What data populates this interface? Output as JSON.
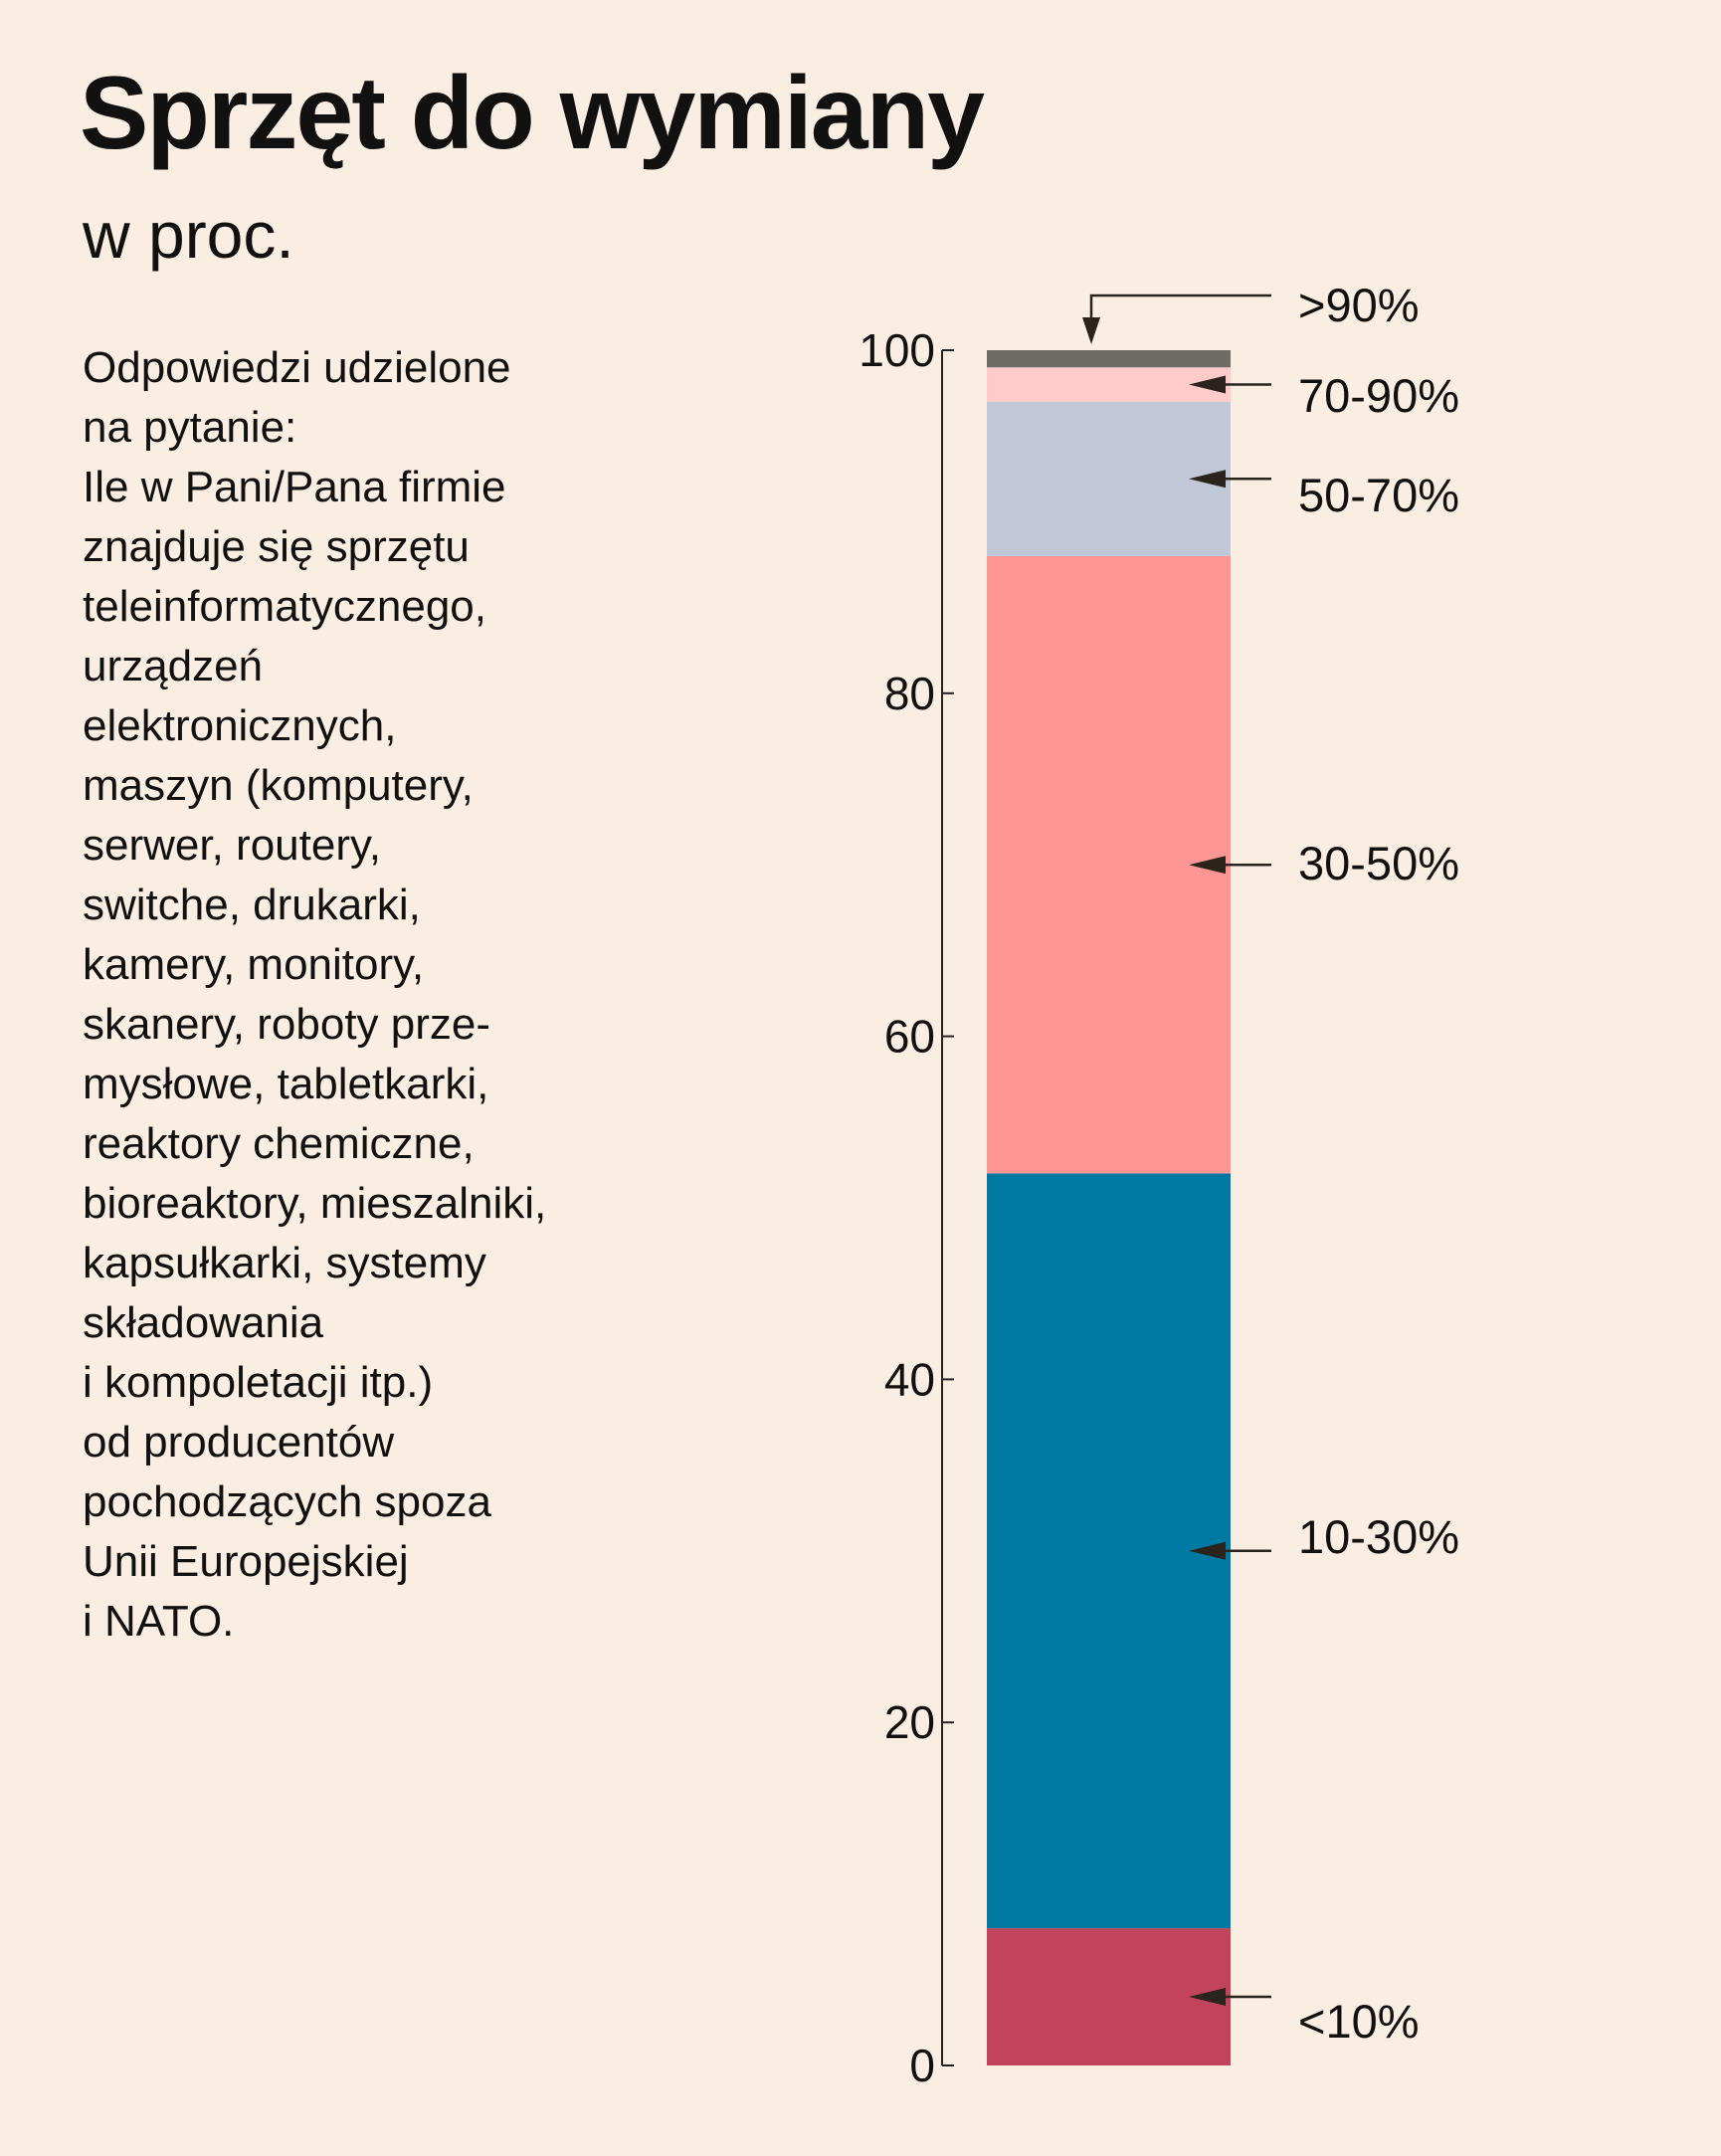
{
  "header": {
    "title": "Sprzęt do wymiany",
    "subtitle": "w proc."
  },
  "description_lines": [
    "Odpowiedzi udzielone",
    "na pytanie:",
    "Ile w Pani/Pana firmie",
    "znajduje się sprzętu",
    "teleinformatycznego,",
    "urządzeń",
    "elektronicznych,",
    "maszyn (komputery,",
    "serwer, routery,",
    "switche, drukarki,",
    "kamery, monitory,",
    "skanery, roboty prze-",
    "mysłowe, tabletkarki,",
    "reaktory chemiczne,",
    "bioreaktory, mieszalniki,",
    "kapsułkarki, systemy",
    "składowania",
    "i kompoletacji itp.)",
    "od producentów",
    "pochodzących spoza",
    "Unii Europejskiej",
    "i NATO."
  ],
  "chart_data": {
    "type": "bar",
    "stacked": true,
    "title": "Sprzęt do wymiany",
    "ylabel": "w proc.",
    "ylim": [
      0,
      100
    ],
    "yticks": [
      0,
      20,
      40,
      60,
      80,
      100
    ],
    "grid": false,
    "series": [
      {
        "name": "<10%",
        "value": 8,
        "color": "#c1445c"
      },
      {
        "name": "10-30%",
        "value": 44,
        "color": "#007aa3"
      },
      {
        "name": "30-50%",
        "value": 36,
        "color": "#ff9696"
      },
      {
        "name": "50-70%",
        "value": 9,
        "color": "#c0c7d6"
      },
      {
        "name": "70-90%",
        "value": 2,
        "color": "#ffcbca"
      },
      {
        "name": ">90%",
        "value": 1,
        "color": "#6e6b64"
      }
    ]
  }
}
